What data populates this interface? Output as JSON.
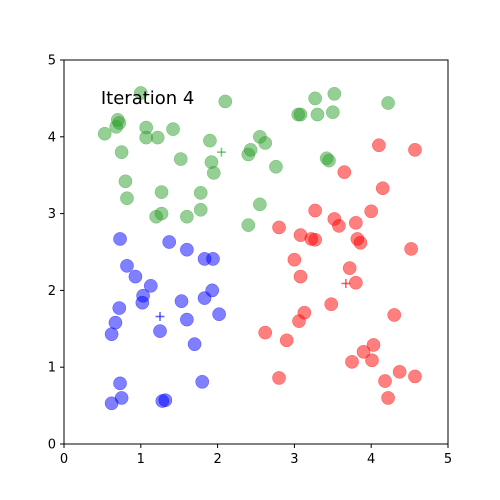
{
  "chart_data": {
    "type": "scatter",
    "title": "",
    "xlabel": "",
    "ylabel": "",
    "xlim": [
      0,
      5
    ],
    "ylim": [
      0,
      5
    ],
    "xticks": [
      "0",
      "1",
      "2",
      "3",
      "4",
      "5"
    ],
    "yticks": [
      "0",
      "1",
      "2",
      "3",
      "4",
      "5"
    ],
    "annotation": "Iteration 4",
    "grid": false,
    "series": [
      {
        "color": "#2ca02c",
        "points": [
          [
            0.53,
            4.04
          ],
          [
            0.68,
            4.13
          ],
          [
            0.7,
            4.22
          ],
          [
            0.72,
            4.18
          ],
          [
            1.0,
            4.57
          ],
          [
            0.75,
            3.8
          ],
          [
            1.07,
            4.12
          ],
          [
            1.07,
            3.99
          ],
          [
            1.22,
            3.99
          ],
          [
            1.42,
            4.1
          ],
          [
            0.8,
            3.42
          ],
          [
            1.52,
            3.71
          ],
          [
            0.82,
            3.2
          ],
          [
            1.27,
            3.28
          ],
          [
            1.2,
            2.96
          ],
          [
            1.27,
            3.0
          ],
          [
            1.6,
            2.96
          ],
          [
            1.78,
            3.27
          ],
          [
            1.78,
            3.05
          ],
          [
            1.9,
            3.95
          ],
          [
            1.92,
            3.67
          ],
          [
            1.95,
            3.53
          ],
          [
            2.1,
            4.46
          ],
          [
            2.4,
            3.77
          ],
          [
            2.43,
            3.83
          ],
          [
            2.55,
            4.0
          ],
          [
            2.62,
            3.92
          ],
          [
            2.76,
            3.61
          ],
          [
            2.55,
            3.12
          ],
          [
            2.4,
            2.85
          ],
          [
            3.05,
            4.29
          ],
          [
            3.08,
            4.29
          ],
          [
            3.27,
            4.5
          ],
          [
            3.3,
            4.29
          ],
          [
            3.5,
            4.32
          ],
          [
            3.52,
            4.56
          ],
          [
            3.42,
            3.72
          ],
          [
            3.45,
            3.69
          ],
          [
            4.22,
            4.44
          ]
        ],
        "centroid": [
          2.05,
          3.8
        ]
      },
      {
        "color": "#0000ff",
        "points": [
          [
            0.73,
            2.67
          ],
          [
            0.82,
            2.32
          ],
          [
            0.93,
            2.18
          ],
          [
            1.03,
            1.93
          ],
          [
            1.02,
            1.84
          ],
          [
            1.13,
            2.06
          ],
          [
            1.37,
            2.63
          ],
          [
            1.6,
            2.53
          ],
          [
            1.83,
            2.41
          ],
          [
            1.94,
            2.41
          ],
          [
            0.72,
            1.77
          ],
          [
            0.67,
            1.58
          ],
          [
            0.62,
            1.43
          ],
          [
            1.53,
            1.86
          ],
          [
            1.6,
            1.62
          ],
          [
            1.83,
            1.9
          ],
          [
            1.93,
            2.0
          ],
          [
            2.02,
            1.69
          ],
          [
            1.25,
            1.47
          ],
          [
            1.7,
            1.3
          ],
          [
            0.73,
            0.79
          ],
          [
            0.75,
            0.6
          ],
          [
            0.62,
            0.53
          ],
          [
            1.28,
            0.56
          ],
          [
            1.32,
            0.57
          ],
          [
            1.8,
            0.81
          ]
        ],
        "centroid": [
          1.25,
          1.66
        ]
      },
      {
        "color": "#ff0000",
        "points": [
          [
            2.8,
            2.82
          ],
          [
            3.08,
            2.72
          ],
          [
            3.22,
            2.67
          ],
          [
            3.27,
            2.66
          ],
          [
            3.27,
            3.04
          ],
          [
            3.52,
            2.93
          ],
          [
            3.58,
            2.84
          ],
          [
            3.65,
            3.54
          ],
          [
            3.8,
            2.88
          ],
          [
            3.82,
            2.67
          ],
          [
            3.86,
            2.62
          ],
          [
            4.0,
            3.03
          ],
          [
            4.1,
            3.89
          ],
          [
            4.15,
            3.33
          ],
          [
            4.57,
            3.83
          ],
          [
            3.0,
            2.4
          ],
          [
            3.08,
            2.18
          ],
          [
            3.48,
            1.82
          ],
          [
            3.72,
            2.29
          ],
          [
            3.8,
            2.1
          ],
          [
            4.52,
            2.54
          ],
          [
            3.06,
            1.6
          ],
          [
            3.13,
            1.71
          ],
          [
            4.3,
            1.68
          ],
          [
            2.62,
            1.45
          ],
          [
            2.9,
            1.35
          ],
          [
            3.75,
            1.07
          ],
          [
            3.9,
            1.2
          ],
          [
            4.03,
            1.29
          ],
          [
            4.01,
            1.09
          ],
          [
            2.8,
            0.86
          ],
          [
            4.18,
            0.82
          ],
          [
            4.37,
            0.94
          ],
          [
            4.22,
            0.6
          ],
          [
            4.57,
            0.88
          ]
        ],
        "centroid": [
          3.67,
          2.09
        ]
      }
    ]
  }
}
